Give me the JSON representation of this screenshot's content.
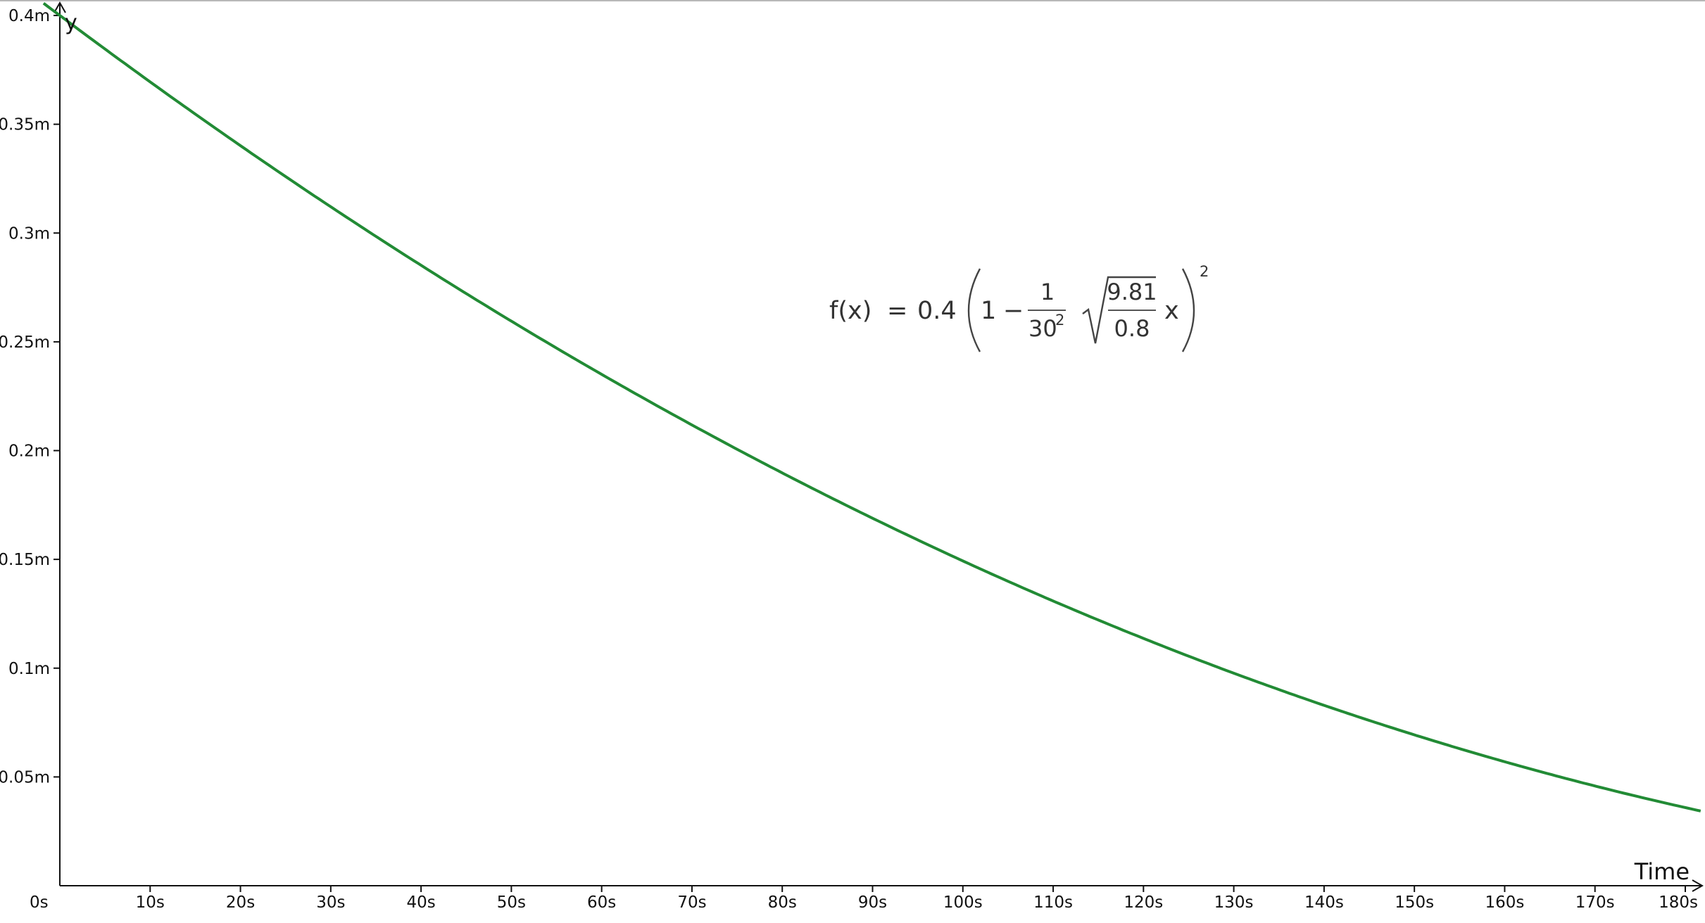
{
  "chart_data": {
    "type": "line",
    "xlabel": "Time",
    "ylabel": "y",
    "xlim": [
      0,
      180
    ],
    "ylim": [
      0,
      0.4
    ],
    "x_ticks": [
      0,
      10,
      20,
      30,
      40,
      50,
      60,
      70,
      80,
      90,
      100,
      110,
      120,
      130,
      140,
      150,
      160,
      170,
      180
    ],
    "x_tick_labels": [
      "0s",
      "10s",
      "20s",
      "30s",
      "40s",
      "50s",
      "60s",
      "70s",
      "80s",
      "90s",
      "100s",
      "110s",
      "120s",
      "130s",
      "140s",
      "150s",
      "160s",
      "170s",
      "180s"
    ],
    "y_ticks": [
      0.05,
      0.1,
      0.15,
      0.2,
      0.25,
      0.3,
      0.35,
      0.4
    ],
    "y_tick_labels": [
      "0.05m",
      "0.1m",
      "0.15m",
      "0.2m",
      "0.25m",
      "0.3m",
      "0.35m",
      "0.4m"
    ],
    "grid": false,
    "series": [
      {
        "color": "#228b35",
        "function": "0.4*(1 - (1/30^2)*sqrt(9.81/0.8)*x)^2",
        "x": [
          0,
          10,
          20,
          30,
          40,
          50,
          60,
          70,
          80,
          90,
          100,
          110,
          120,
          130,
          140,
          150,
          160,
          170,
          180
        ],
        "values": [
          0.4,
          0.369,
          0.3393,
          0.3108,
          0.2836,
          0.2577,
          0.2331,
          0.2098,
          0.1878,
          0.1671,
          0.1476,
          0.1295,
          0.1126,
          0.097,
          0.0827,
          0.0697,
          0.058,
          0.0476,
          0.0384
        ]
      }
    ],
    "annotation": {
      "lhs": "f(x)",
      "equals": "=",
      "coef": "0.4",
      "one": "1",
      "minus": "−",
      "frac_num": "1",
      "frac_den_base": "30",
      "frac_den_exp": "2",
      "sqrt_num": "9.81",
      "sqrt_den": "0.8",
      "var": "x",
      "outer_exp": "2"
    }
  }
}
